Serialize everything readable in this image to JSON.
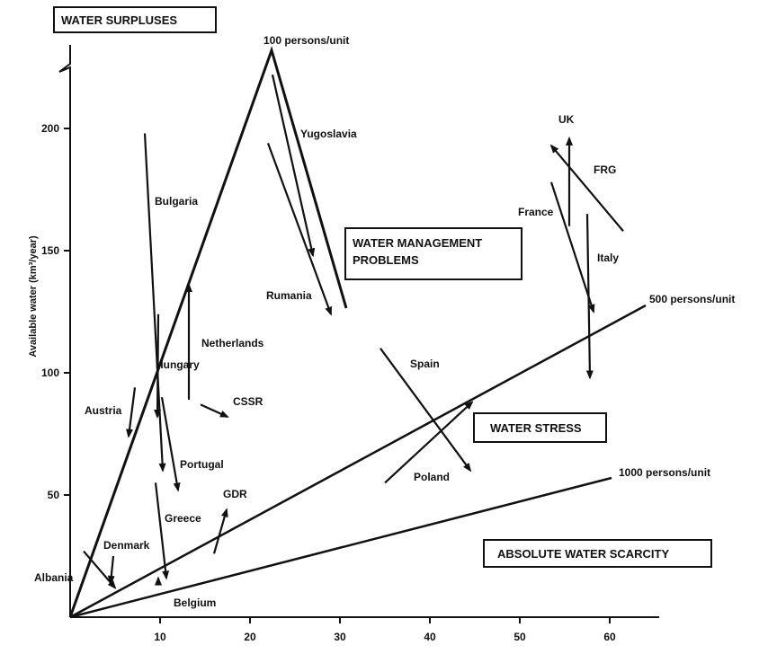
{
  "chart_data": {
    "type": "scatter",
    "ylabel": "Available water (km³/year)",
    "xlabel": "",
    "x_ticks": [
      10,
      20,
      30,
      40,
      50,
      60
    ],
    "y_ticks": [
      50,
      100,
      150,
      200
    ],
    "xlim": [
      0,
      66
    ],
    "ylim": [
      0,
      230
    ],
    "y_axis_break": true,
    "zones": [
      {
        "label": "WATER SURPLUSES"
      },
      {
        "label": "WATER MANAGEMENT PROBLEMS",
        "lines": [
          "WATER MANAGEMENT",
          "PROBLEMS"
        ]
      },
      {
        "label": "WATER STRESS"
      },
      {
        "label": "ABSOLUTE WATER SCARCITY"
      }
    ],
    "reference_lines": [
      {
        "label": "100 persons/unit",
        "x_at_top": 22.5,
        "y_at_top": 225
      },
      {
        "label": "500 persons/unit",
        "x_end": 64,
        "y_end": 128
      },
      {
        "label": "1000 persons/unit",
        "x_end": 58,
        "y_end": 57
      }
    ],
    "series": [
      {
        "name": "Albania",
        "from": [
          1.5,
          27
        ],
        "to": [
          5,
          12
        ]
      },
      {
        "name": "Denmark",
        "from": [
          4.8,
          25
        ],
        "to": [
          4.5,
          14
        ]
      },
      {
        "name": "Austria",
        "from": [
          7.2,
          94
        ],
        "to": [
          6.5,
          74
        ]
      },
      {
        "name": "Belgium",
        "from": [
          9.8,
          13
        ],
        "to": [
          9.8,
          16
        ]
      },
      {
        "name": "Greece",
        "from": [
          9.5,
          55
        ],
        "to": [
          10.7,
          16
        ]
      },
      {
        "name": "Bulgaria",
        "from": [
          8.3,
          198
        ],
        "to": [
          10.3,
          60
        ]
      },
      {
        "name": "Hungary",
        "from": [
          9.8,
          124
        ],
        "to": [
          9.7,
          82
        ]
      },
      {
        "name": "Portugal",
        "from": [
          10.2,
          90
        ],
        "to": [
          12,
          52
        ]
      },
      {
        "name": "Netherlands",
        "from": [
          13.2,
          89
        ],
        "to": [
          13.2,
          136
        ]
      },
      {
        "name": "CSSR",
        "from": [
          14.5,
          87
        ],
        "to": [
          17.5,
          82
        ]
      },
      {
        "name": "GDR",
        "from": [
          16,
          26
        ],
        "to": [
          17.4,
          44
        ]
      },
      {
        "name": "Yugoslavia",
        "from": [
          22.5,
          222
        ],
        "to": [
          27,
          148
        ]
      },
      {
        "name": "Rumania",
        "from": [
          22,
          194
        ],
        "to": [
          29,
          124
        ]
      },
      {
        "name": "Spain",
        "from": [
          34.5,
          110
        ],
        "to": [
          44.5,
          60
        ]
      },
      {
        "name": "Poland",
        "from": [
          35,
          55
        ],
        "to": [
          44.7,
          88
        ]
      },
      {
        "name": "UK",
        "from": [
          55.5,
          160
        ],
        "to": [
          55.5,
          196
        ]
      },
      {
        "name": "FRG",
        "from": [
          61.5,
          158
        ],
        "to": [
          53.5,
          193
        ]
      },
      {
        "name": "France",
        "from": [
          53.5,
          178
        ],
        "to": [
          58.2,
          125
        ]
      },
      {
        "name": "Italy",
        "from": [
          57.5,
          165
        ],
        "to": [
          57.8,
          98
        ]
      }
    ]
  }
}
